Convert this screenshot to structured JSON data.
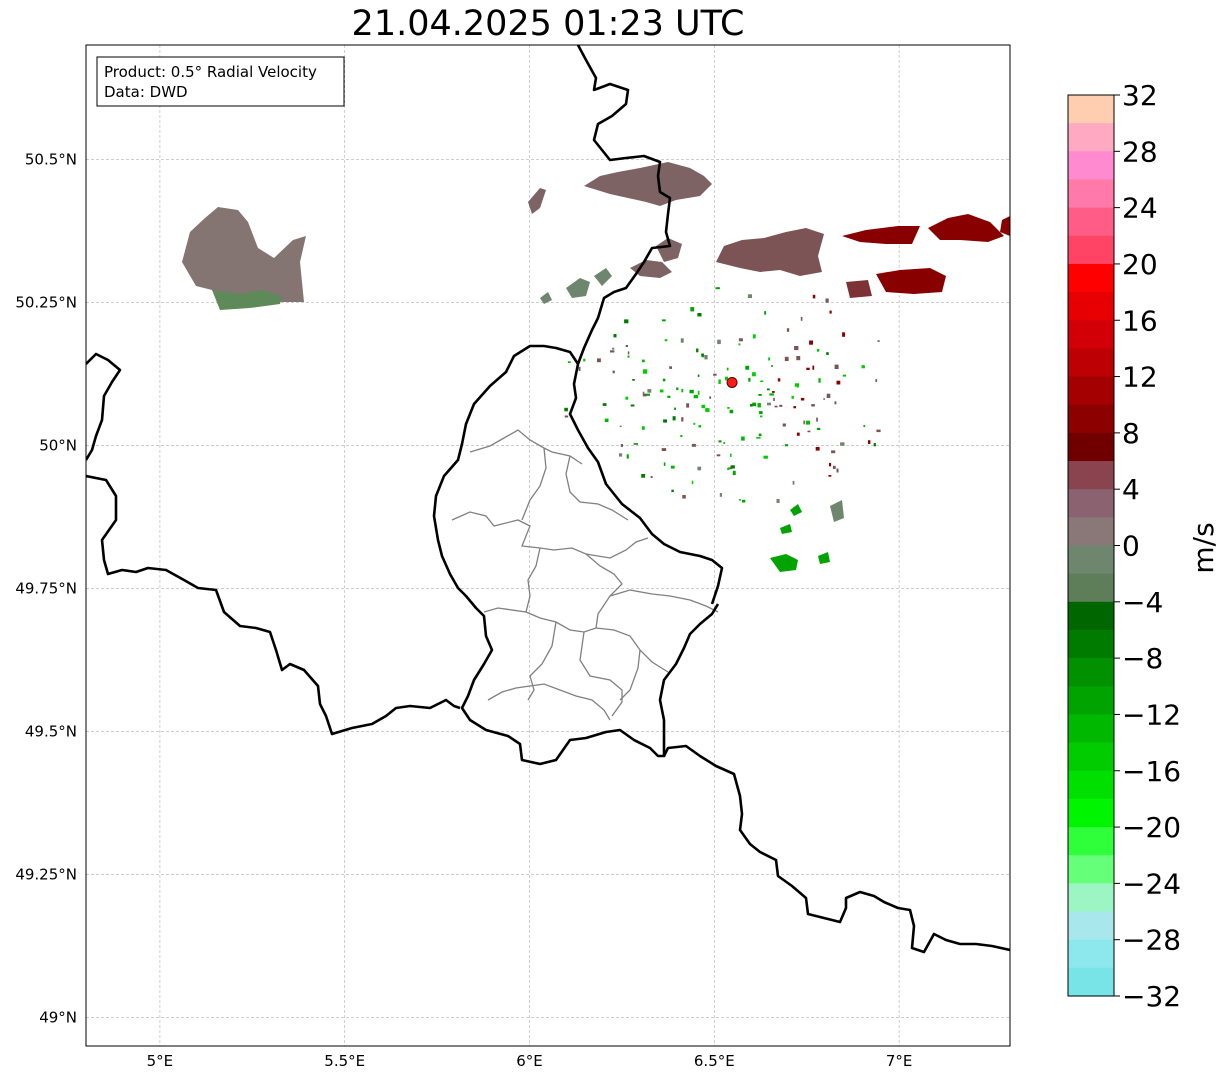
{
  "title": "21.04.2025 01:23 UTC",
  "info_box": {
    "product": "Product: 0.5° Radial Velocity",
    "data_source": "Data: DWD"
  },
  "map": {
    "lon_range": [
      4.8,
      7.3
    ],
    "lat_range": [
      48.95,
      50.7
    ],
    "x_ticks": [
      {
        "value": 5.0,
        "label": "5°E"
      },
      {
        "value": 5.5,
        "label": "5.5°E"
      },
      {
        "value": 6.0,
        "label": "6°E"
      },
      {
        "value": 6.5,
        "label": "6.5°E"
      },
      {
        "value": 7.0,
        "label": "7°E"
      }
    ],
    "y_ticks": [
      {
        "value": 50.5,
        "label": "50.5°N"
      },
      {
        "value": 50.25,
        "label": "50.25°N"
      },
      {
        "value": 50.0,
        "label": "50°N"
      },
      {
        "value": 49.75,
        "label": "49.75°N"
      },
      {
        "value": 49.5,
        "label": "49.5°N"
      },
      {
        "value": 49.25,
        "label": "49.25°N"
      },
      {
        "value": 49.0,
        "label": "49°N"
      }
    ],
    "grid": true,
    "radar_site": {
      "lon": 6.548,
      "lat": 50.11
    },
    "colors": {
      "border": "#000000",
      "admin": "#808080",
      "grid": "#b0b0b0",
      "radar_marker": "#ff1a1a"
    }
  },
  "colorbar": {
    "label": "m/s",
    "vmin": -32,
    "vmax": 32,
    "tick_labels": [
      "32",
      "28",
      "24",
      "20",
      "16",
      "12",
      "8",
      "4",
      "0",
      "−4",
      "−8",
      "−12",
      "−16",
      "−20",
      "−24",
      "−28",
      "−32"
    ],
    "tick_values": [
      32,
      28,
      24,
      20,
      16,
      12,
      8,
      4,
      0,
      -4,
      -8,
      -12,
      -16,
      -20,
      -24,
      -28,
      -32
    ],
    "colors_top_to_bottom": [
      "#ffceb0",
      "#ffa9c2",
      "#ff8ad0",
      "#ff7aa8",
      "#ff5c88",
      "#ff4466",
      "#ff0000",
      "#e60004",
      "#d20006",
      "#bc0003",
      "#a40002",
      "#8c0000",
      "#700000",
      "#8a4450",
      "#8a6270",
      "#8a7878",
      "#6e866e",
      "#5e7e5a",
      "#006600",
      "#007b00",
      "#009000",
      "#00a300",
      "#00b800",
      "#00cc00",
      "#00e000",
      "#00f500",
      "#2eff3a",
      "#66ff7a",
      "#9ef5c4",
      "#a8e8ec",
      "#8ce8ec",
      "#78e4e8"
    ]
  }
}
